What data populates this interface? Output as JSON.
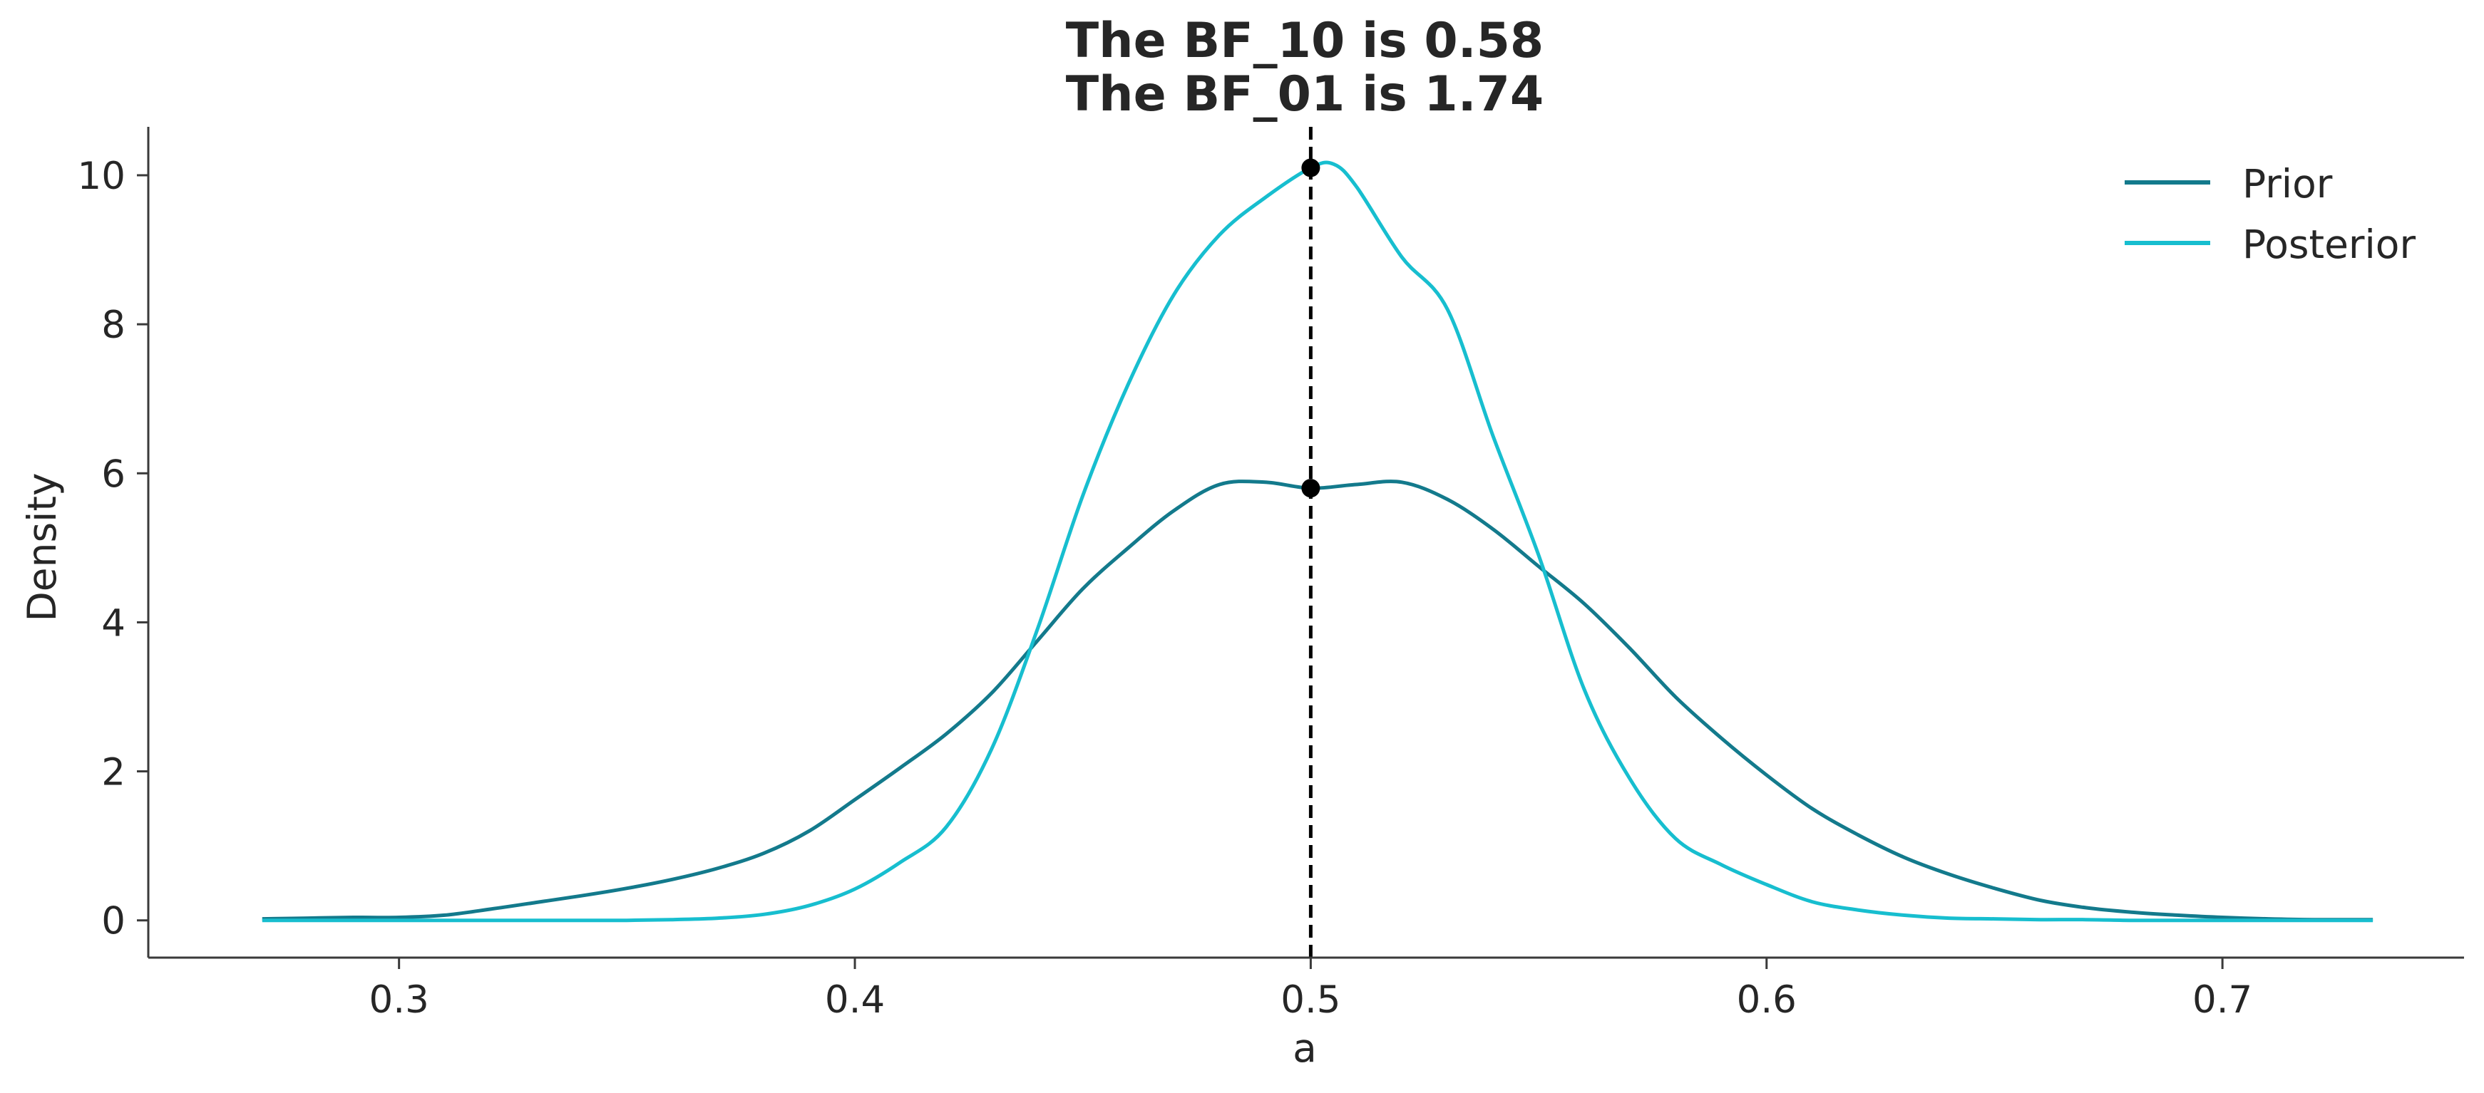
{
  "chart_data": {
    "type": "line",
    "title_lines": [
      "The BF_10 is 0.58",
      "The BF_01 is 1.74"
    ],
    "xlabel": "a",
    "ylabel": "Density",
    "xlim": [
      0.245,
      0.753
    ],
    "ylim": [
      -0.5,
      10.65
    ],
    "xticks": [
      0.3,
      0.4,
      0.5,
      0.6,
      0.7
    ],
    "xtick_labels": [
      "0.3",
      "0.4",
      "0.5",
      "0.6",
      "0.7"
    ],
    "yticks": [
      0,
      2,
      4,
      6,
      8,
      10
    ],
    "ytick_labels": [
      "0",
      "2",
      "4",
      "6",
      "8",
      "10"
    ],
    "grid": false,
    "legend_position": "top-right",
    "reference_line": {
      "x": 0.5,
      "style": "dashed",
      "color": "#000000"
    },
    "reference_points": [
      {
        "x": 0.5,
        "y": 10.1
      },
      {
        "x": 0.5,
        "y": 5.8
      }
    ],
    "series": [
      {
        "name": "Prior",
        "color": "#137a8c",
        "x": [
          0.27,
          0.28,
          0.29,
          0.3,
          0.31,
          0.32,
          0.33,
          0.34,
          0.35,
          0.36,
          0.37,
          0.38,
          0.39,
          0.4,
          0.41,
          0.42,
          0.43,
          0.44,
          0.45,
          0.46,
          0.47,
          0.48,
          0.49,
          0.5,
          0.51,
          0.52,
          0.53,
          0.54,
          0.55,
          0.56,
          0.57,
          0.58,
          0.59,
          0.6,
          0.61,
          0.62,
          0.63,
          0.64,
          0.65,
          0.66,
          0.67,
          0.68,
          0.69,
          0.7,
          0.71,
          0.72,
          0.733
        ],
        "y": [
          0.02,
          0.03,
          0.04,
          0.04,
          0.07,
          0.15,
          0.24,
          0.33,
          0.43,
          0.55,
          0.7,
          0.9,
          1.2,
          1.62,
          2.05,
          2.5,
          3.05,
          3.75,
          4.45,
          5.0,
          5.5,
          5.85,
          5.88,
          5.8,
          5.85,
          5.88,
          5.65,
          5.25,
          4.75,
          4.25,
          3.65,
          3.0,
          2.45,
          1.95,
          1.5,
          1.15,
          0.85,
          0.62,
          0.43,
          0.27,
          0.17,
          0.11,
          0.07,
          0.04,
          0.02,
          0.01,
          0.01
        ]
      },
      {
        "name": "Posterior",
        "color": "#17becf",
        "x": [
          0.27,
          0.28,
          0.29,
          0.3,
          0.31,
          0.32,
          0.33,
          0.34,
          0.35,
          0.36,
          0.37,
          0.38,
          0.39,
          0.4,
          0.41,
          0.42,
          0.43,
          0.44,
          0.45,
          0.46,
          0.47,
          0.48,
          0.49,
          0.5,
          0.505,
          0.51,
          0.52,
          0.53,
          0.54,
          0.55,
          0.56,
          0.57,
          0.58,
          0.59,
          0.6,
          0.61,
          0.62,
          0.63,
          0.64,
          0.65,
          0.66,
          0.67,
          0.68,
          0.69,
          0.7,
          0.71,
          0.72,
          0.733
        ],
        "y": [
          0.0,
          0.0,
          0.0,
          0.0,
          0.0,
          0.0,
          0.0,
          0.0,
          0.0,
          0.01,
          0.03,
          0.08,
          0.2,
          0.42,
          0.78,
          1.25,
          2.3,
          3.9,
          5.7,
          7.2,
          8.4,
          9.2,
          9.7,
          10.1,
          10.15,
          9.85,
          8.9,
          8.2,
          6.5,
          4.9,
          3.1,
          1.9,
          1.1,
          0.75,
          0.48,
          0.25,
          0.14,
          0.07,
          0.03,
          0.02,
          0.01,
          0.01,
          0.0,
          0.0,
          0.0,
          0.0,
          0.0,
          0.0
        ]
      }
    ]
  }
}
